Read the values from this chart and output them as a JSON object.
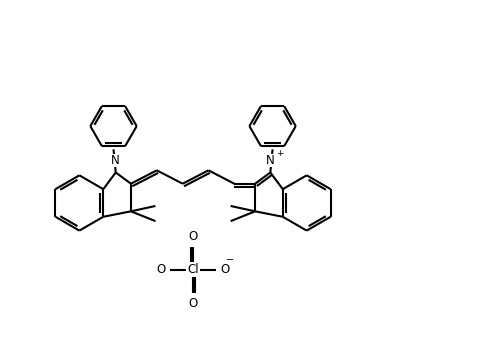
{
  "bg_color": "#ffffff",
  "line_color": "#000000",
  "lw": 1.5,
  "fig_width": 4.93,
  "fig_height": 3.48,
  "dpi": 100,
  "fs": 8.5,
  "xlim": [
    -0.5,
    10.5
  ],
  "ylim": [
    0.2,
    7.2
  ]
}
